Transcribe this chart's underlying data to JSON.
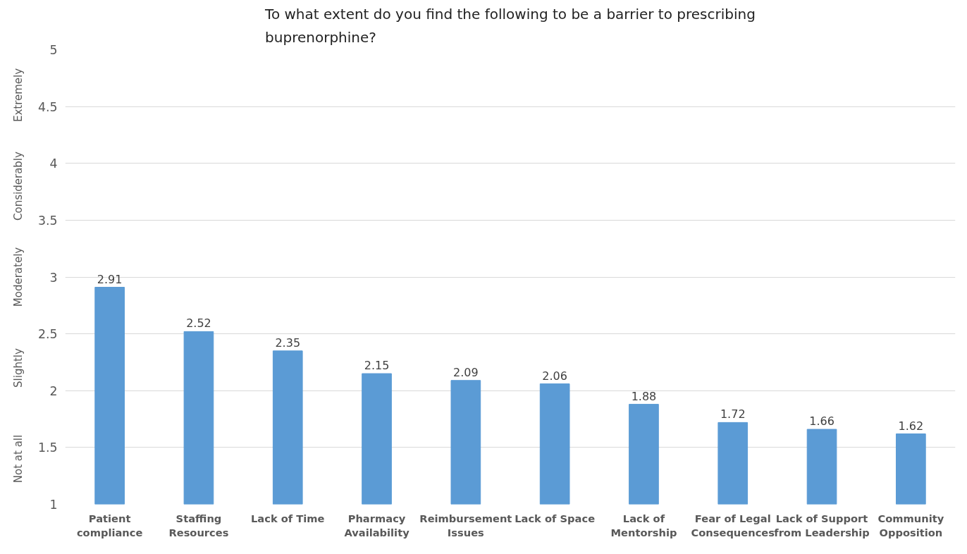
{
  "chart_data": {
    "type": "bar",
    "title": "To what extent do you find the following to be a barrier to prescribing buprenorphine?",
    "categories": [
      "Patient compliance",
      "Staffing Resources",
      "Lack of Time",
      "Pharmacy Availability",
      "Reimbursement Issues",
      "Lack of Space",
      "Lack of Mentorship",
      "Fear of Legal Consequences",
      "Lack of Support from Leadership",
      "Community Opposition"
    ],
    "values": [
      2.91,
      2.52,
      2.35,
      2.15,
      2.09,
      2.06,
      1.88,
      1.72,
      1.66,
      1.62
    ],
    "color": "#5b9bd5",
    "ylim": [
      1,
      5
    ],
    "yticks": [
      1,
      1.5,
      2,
      2.5,
      3,
      3.5,
      4,
      4.5,
      5
    ],
    "grid": "y",
    "data_labels": true,
    "annotations": [
      "Not at all",
      "Slightly",
      "Moderately",
      "Considerably",
      "Extremely"
    ]
  }
}
